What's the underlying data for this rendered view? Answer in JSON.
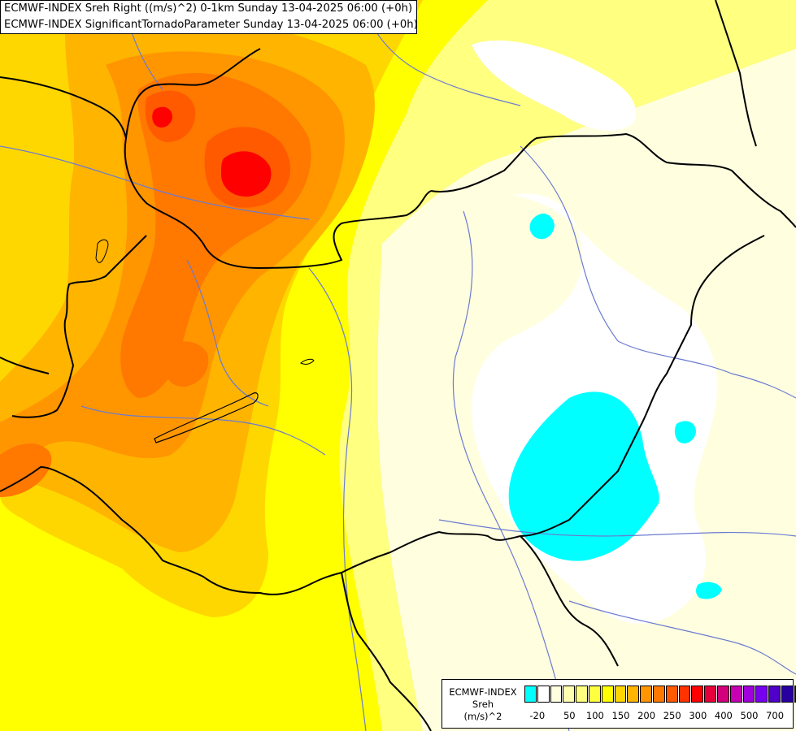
{
  "header": {
    "line1": "ECMWF-INDEX Sreh Right ((m/s)^2) 0-1km Sunday 13-04-2025 06:00 (+0h)",
    "line2": "ECMWF-INDEX SignificantTornadoParameter Sunday 13-04-2025 06:00 (+0h)"
  },
  "legend": {
    "title_lines": [
      "ECMWF-INDEX",
      "Sreh",
      "(m/s)^2"
    ],
    "swatches": [
      "#00ffff",
      "#ffffff",
      "#ffffe0",
      "#ffffb0",
      "#ffff80",
      "#ffff40",
      "#ffff00",
      "#ffd700",
      "#ffb400",
      "#ff9600",
      "#ff7800",
      "#ff5a00",
      "#ff3200",
      "#ff0000",
      "#e6003c",
      "#d2007a",
      "#c800b4",
      "#a000dc",
      "#7800f0",
      "#5000c8",
      "#2800a0",
      "#000080"
    ],
    "ticks": [
      "-20",
      "50",
      "100",
      "150",
      "200",
      "250",
      "300",
      "400",
      "500",
      "700"
    ]
  },
  "map": {
    "fills": {
      "base": "#ffff80",
      "cyan": "#00ffff",
      "white": "#ffffff",
      "pale": "#ffffe0",
      "yellow": "#ffff00",
      "gold": "#ffd700",
      "orange_light": "#ffb400",
      "orange": "#ff9600",
      "orange_dark": "#ff7800",
      "red_orange": "#ff5a00",
      "red": "#ff0000"
    },
    "border_color": "#000000",
    "river_color": "#6b7bd0"
  }
}
